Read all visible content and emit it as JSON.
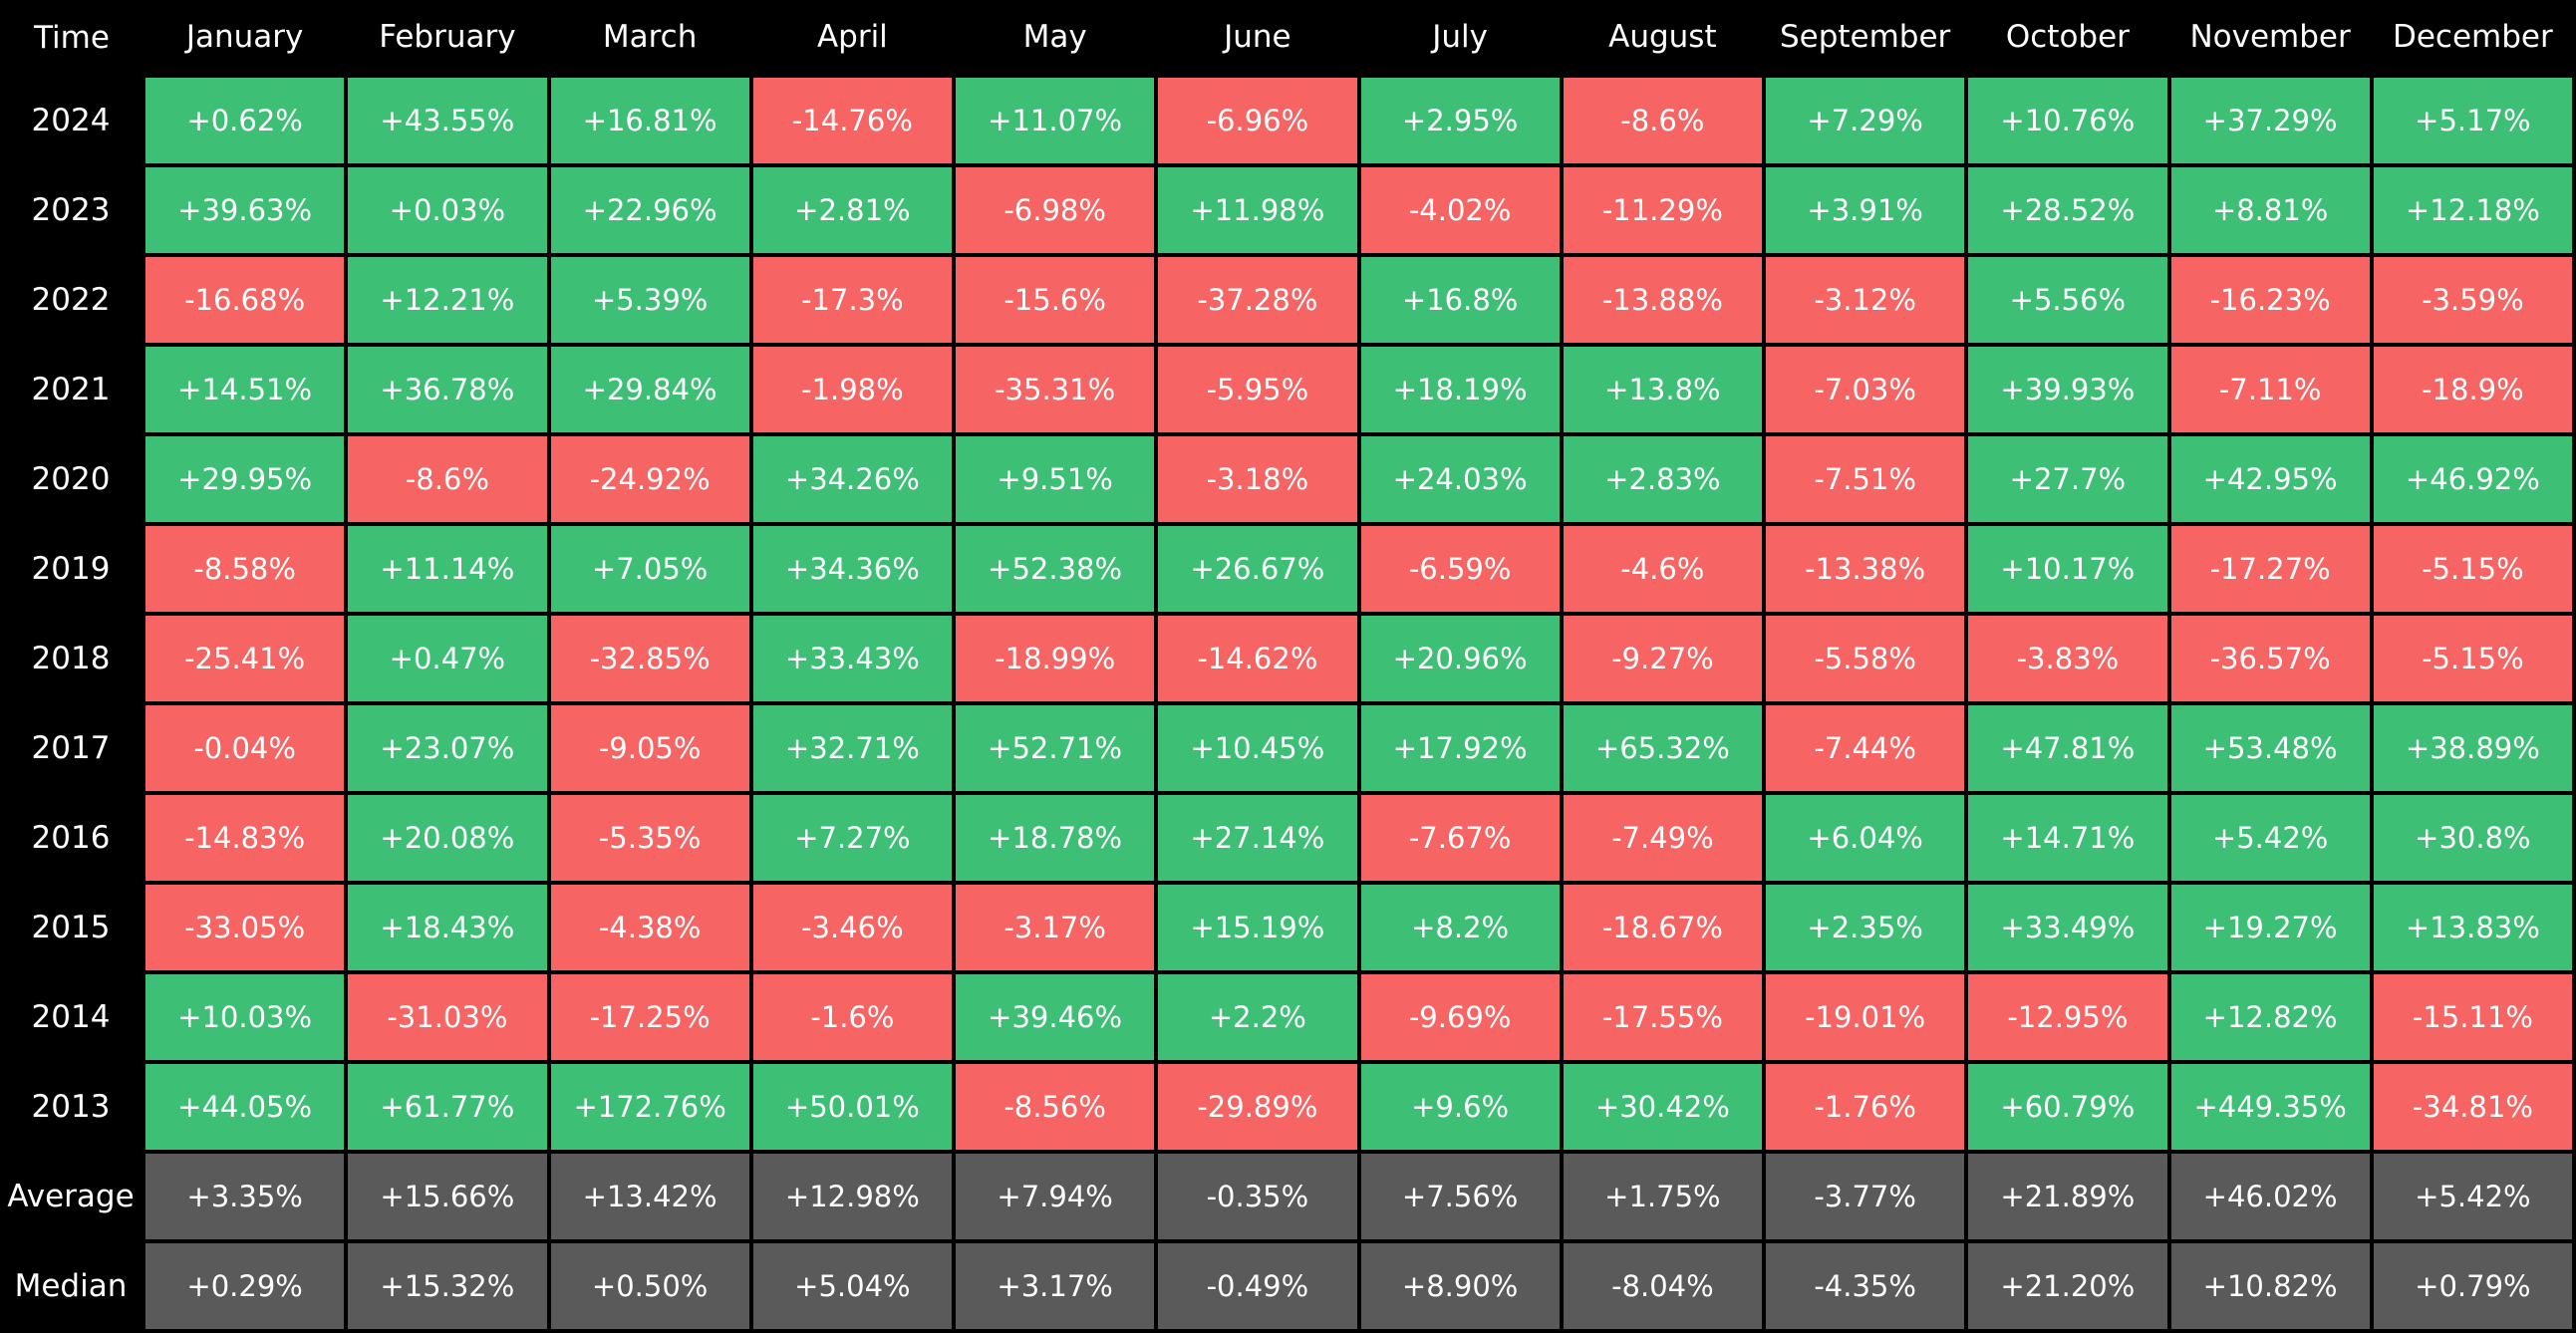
{
  "chart_data": {
    "type": "table",
    "corner_label": "Time",
    "months": [
      "January",
      "February",
      "March",
      "April",
      "May",
      "June",
      "July",
      "August",
      "September",
      "October",
      "November",
      "December"
    ],
    "rows": [
      {
        "label": "2024",
        "values": [
          "+0.62%",
          "+43.55%",
          "+16.81%",
          "-14.76%",
          "+11.07%",
          "-6.96%",
          "+2.95%",
          "-8.6%",
          "+7.29%",
          "+10.76%",
          "+37.29%",
          "+5.17%"
        ]
      },
      {
        "label": "2023",
        "values": [
          "+39.63%",
          "+0.03%",
          "+22.96%",
          "+2.81%",
          "-6.98%",
          "+11.98%",
          "-4.02%",
          "-11.29%",
          "+3.91%",
          "+28.52%",
          "+8.81%",
          "+12.18%"
        ]
      },
      {
        "label": "2022",
        "values": [
          "-16.68%",
          "+12.21%",
          "+5.39%",
          "-17.3%",
          "-15.6%",
          "-37.28%",
          "+16.8%",
          "-13.88%",
          "-3.12%",
          "+5.56%",
          "-16.23%",
          "-3.59%"
        ]
      },
      {
        "label": "2021",
        "values": [
          "+14.51%",
          "+36.78%",
          "+29.84%",
          "-1.98%",
          "-35.31%",
          "-5.95%",
          "+18.19%",
          "+13.8%",
          "-7.03%",
          "+39.93%",
          "-7.11%",
          "-18.9%"
        ]
      },
      {
        "label": "2020",
        "values": [
          "+29.95%",
          "-8.6%",
          "-24.92%",
          "+34.26%",
          "+9.51%",
          "-3.18%",
          "+24.03%",
          "+2.83%",
          "-7.51%",
          "+27.7%",
          "+42.95%",
          "+46.92%"
        ]
      },
      {
        "label": "2019",
        "values": [
          "-8.58%",
          "+11.14%",
          "+7.05%",
          "+34.36%",
          "+52.38%",
          "+26.67%",
          "-6.59%",
          "-4.6%",
          "-13.38%",
          "+10.17%",
          "-17.27%",
          "-5.15%"
        ]
      },
      {
        "label": "2018",
        "values": [
          "-25.41%",
          "+0.47%",
          "-32.85%",
          "+33.43%",
          "-18.99%",
          "-14.62%",
          "+20.96%",
          "-9.27%",
          "-5.58%",
          "-3.83%",
          "-36.57%",
          "-5.15%"
        ]
      },
      {
        "label": "2017",
        "values": [
          "-0.04%",
          "+23.07%",
          "-9.05%",
          "+32.71%",
          "+52.71%",
          "+10.45%",
          "+17.92%",
          "+65.32%",
          "-7.44%",
          "+47.81%",
          "+53.48%",
          "+38.89%"
        ]
      },
      {
        "label": "2016",
        "values": [
          "-14.83%",
          "+20.08%",
          "-5.35%",
          "+7.27%",
          "+18.78%",
          "+27.14%",
          "-7.67%",
          "-7.49%",
          "+6.04%",
          "+14.71%",
          "+5.42%",
          "+30.8%"
        ]
      },
      {
        "label": "2015",
        "values": [
          "-33.05%",
          "+18.43%",
          "-4.38%",
          "-3.46%",
          "-3.17%",
          "+15.19%",
          "+8.2%",
          "-18.67%",
          "+2.35%",
          "+33.49%",
          "+19.27%",
          "+13.83%"
        ]
      },
      {
        "label": "2014",
        "values": [
          "+10.03%",
          "-31.03%",
          "-17.25%",
          "-1.6%",
          "+39.46%",
          "+2.2%",
          "-9.69%",
          "-17.55%",
          "-19.01%",
          "-12.95%",
          "+12.82%",
          "-15.11%"
        ]
      },
      {
        "label": "2013",
        "values": [
          "+44.05%",
          "+61.77%",
          "+172.76%",
          "+50.01%",
          "-8.56%",
          "-29.89%",
          "+9.6%",
          "+30.42%",
          "-1.76%",
          "+60.79%",
          "+449.35%",
          "-34.81%"
        ]
      },
      {
        "label": "Average",
        "summary": true,
        "values": [
          "+3.35%",
          "+15.66%",
          "+13.42%",
          "+12.98%",
          "+7.94%",
          "-0.35%",
          "+7.56%",
          "+1.75%",
          "-3.77%",
          "+21.89%",
          "+46.02%",
          "+5.42%"
        ]
      },
      {
        "label": "Median",
        "summary": true,
        "values": [
          "+0.29%",
          "+15.32%",
          "+0.50%",
          "+5.04%",
          "+3.17%",
          "-0.49%",
          "+8.90%",
          "-8.04%",
          "-4.35%",
          "+21.20%",
          "+10.82%",
          "+0.79%"
        ]
      }
    ],
    "colors": {
      "positive": "#3dbf76",
      "negative": "#f76464",
      "summary": "#5a5a5a",
      "background": "#000000",
      "text": "#ffffff"
    }
  }
}
